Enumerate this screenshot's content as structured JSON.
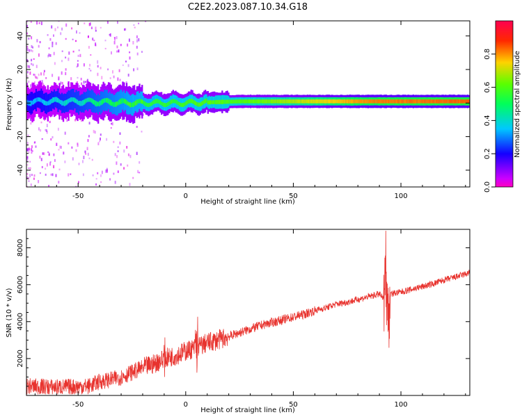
{
  "title": "C2E2.2023.087.10.34.G18",
  "chart_data": [
    {
      "type": "heatmap",
      "xlabel": "Height of straight line (km)",
      "ylabel": "Frequency (Hz)",
      "xlim": [
        -74,
        132
      ],
      "ylim": [
        -50,
        49
      ],
      "xticks": [
        "-50",
        "0",
        "50",
        "100"
      ],
      "xtick_values": [
        -50,
        0,
        50,
        100
      ],
      "yticks": [
        "40",
        "20",
        "0",
        "-20",
        "-40"
      ],
      "ytick_values": [
        40,
        20,
        0,
        -20,
        -40
      ],
      "colorbar": {
        "label": "Normalized spectral amplitude",
        "range": [
          0,
          1
        ],
        "ticks": [
          "0.0",
          "0.2",
          "0.4",
          "0.6",
          "0.8"
        ],
        "tick_values": [
          0,
          0.2,
          0.4,
          0.6,
          0.8
        ],
        "colormap": "gist_rainbow_r"
      },
      "ridge": {
        "x": [
          -74,
          -50,
          -25,
          0,
          25,
          50,
          75,
          90,
          100,
          132
        ],
        "frequency_hz": [
          1,
          1,
          0,
          0,
          1,
          1,
          1,
          1,
          1,
          1
        ],
        "amplitude": [
          0.35,
          0.45,
          0.6,
          0.65,
          0.7,
          0.8,
          0.9,
          0.95,
          0.95,
          0.97
        ]
      },
      "grid": false
    },
    {
      "type": "line",
      "xlabel": "Height of straight line (km)",
      "ylabel": "SNR (10 * v/v)",
      "xlim": [
        -74,
        132
      ],
      "ylim": [
        0,
        9000
      ],
      "xticks": [
        "-50",
        "0",
        "50",
        "100"
      ],
      "xtick_values": [
        -50,
        0,
        50,
        100
      ],
      "yticks": [
        "2000",
        "4000",
        "6000",
        "8000"
      ],
      "ytick_values": [
        2000,
        4000,
        6000,
        8000
      ],
      "color": "#e8332e",
      "x": [
        -74,
        -60,
        -45,
        -40,
        -35,
        -30,
        -25,
        -20,
        -15,
        -10,
        -5,
        0,
        5,
        10,
        15,
        20,
        25,
        30,
        35,
        40,
        45,
        50,
        55,
        60,
        65,
        70,
        75,
        80,
        85,
        90,
        92,
        93,
        94,
        95,
        100,
        105,
        110,
        115,
        120,
        125,
        132
      ],
      "y": [
        500,
        450,
        500,
        750,
        850,
        1000,
        1250,
        1500,
        1700,
        2000,
        2150,
        2400,
        2600,
        2850,
        3000,
        3200,
        3400,
        3600,
        3800,
        3950,
        4100,
        4250,
        4400,
        4600,
        4750,
        4950,
        5050,
        5200,
        5350,
        5500,
        5200,
        7200,
        4000,
        5500,
        5600,
        5750,
        5900,
        6050,
        6250,
        6400,
        6650
      ],
      "grid": false
    }
  ]
}
